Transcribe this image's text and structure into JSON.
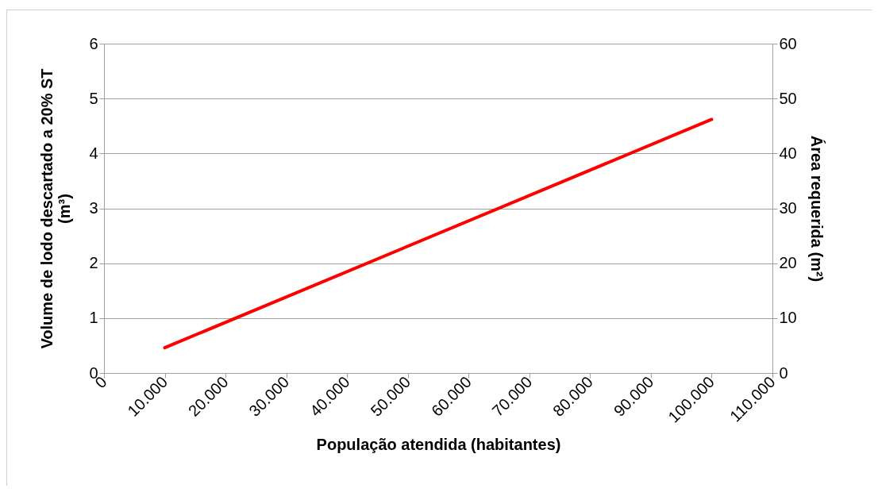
{
  "chart_data": {
    "type": "line",
    "xlabel": "População atendida (habitantes)",
    "ylabel": "Volume  de lodo descartado a 20% ST\n(m³)",
    "y2label": "Área requerida (m²)",
    "x": [
      10000,
      100000
    ],
    "series": [
      {
        "color": "#ff0000",
        "values": [
          0.46,
          4.62
        ]
      }
    ],
    "xlim": [
      0,
      110000
    ],
    "xticks": [
      0,
      {
        "value": 10000,
        "label": "10.000"
      },
      {
        "value": 20000,
        "label": "20.000"
      },
      {
        "value": 30000,
        "label": "30.000"
      },
      {
        "value": 40000,
        "label": "40.000"
      },
      {
        "value": 50000,
        "label": "50.000"
      },
      {
        "value": 60000,
        "label": "60.000"
      },
      {
        "value": 70000,
        "label": "70.000"
      },
      {
        "value": 80000,
        "label": "80.000"
      },
      {
        "value": 90000,
        "label": "90.000"
      },
      {
        "value": 100000,
        "label": "100.000"
      },
      {
        "value": 110000,
        "label": "110.000"
      }
    ],
    "ylim": [
      0,
      6
    ],
    "yticks": [
      0,
      1,
      2,
      3,
      4,
      5,
      6
    ],
    "y2lim": [
      0,
      60
    ],
    "y2ticks": [
      0,
      10,
      20,
      30,
      40,
      50,
      60
    ],
    "grid": "y",
    "line_style": "solid"
  }
}
